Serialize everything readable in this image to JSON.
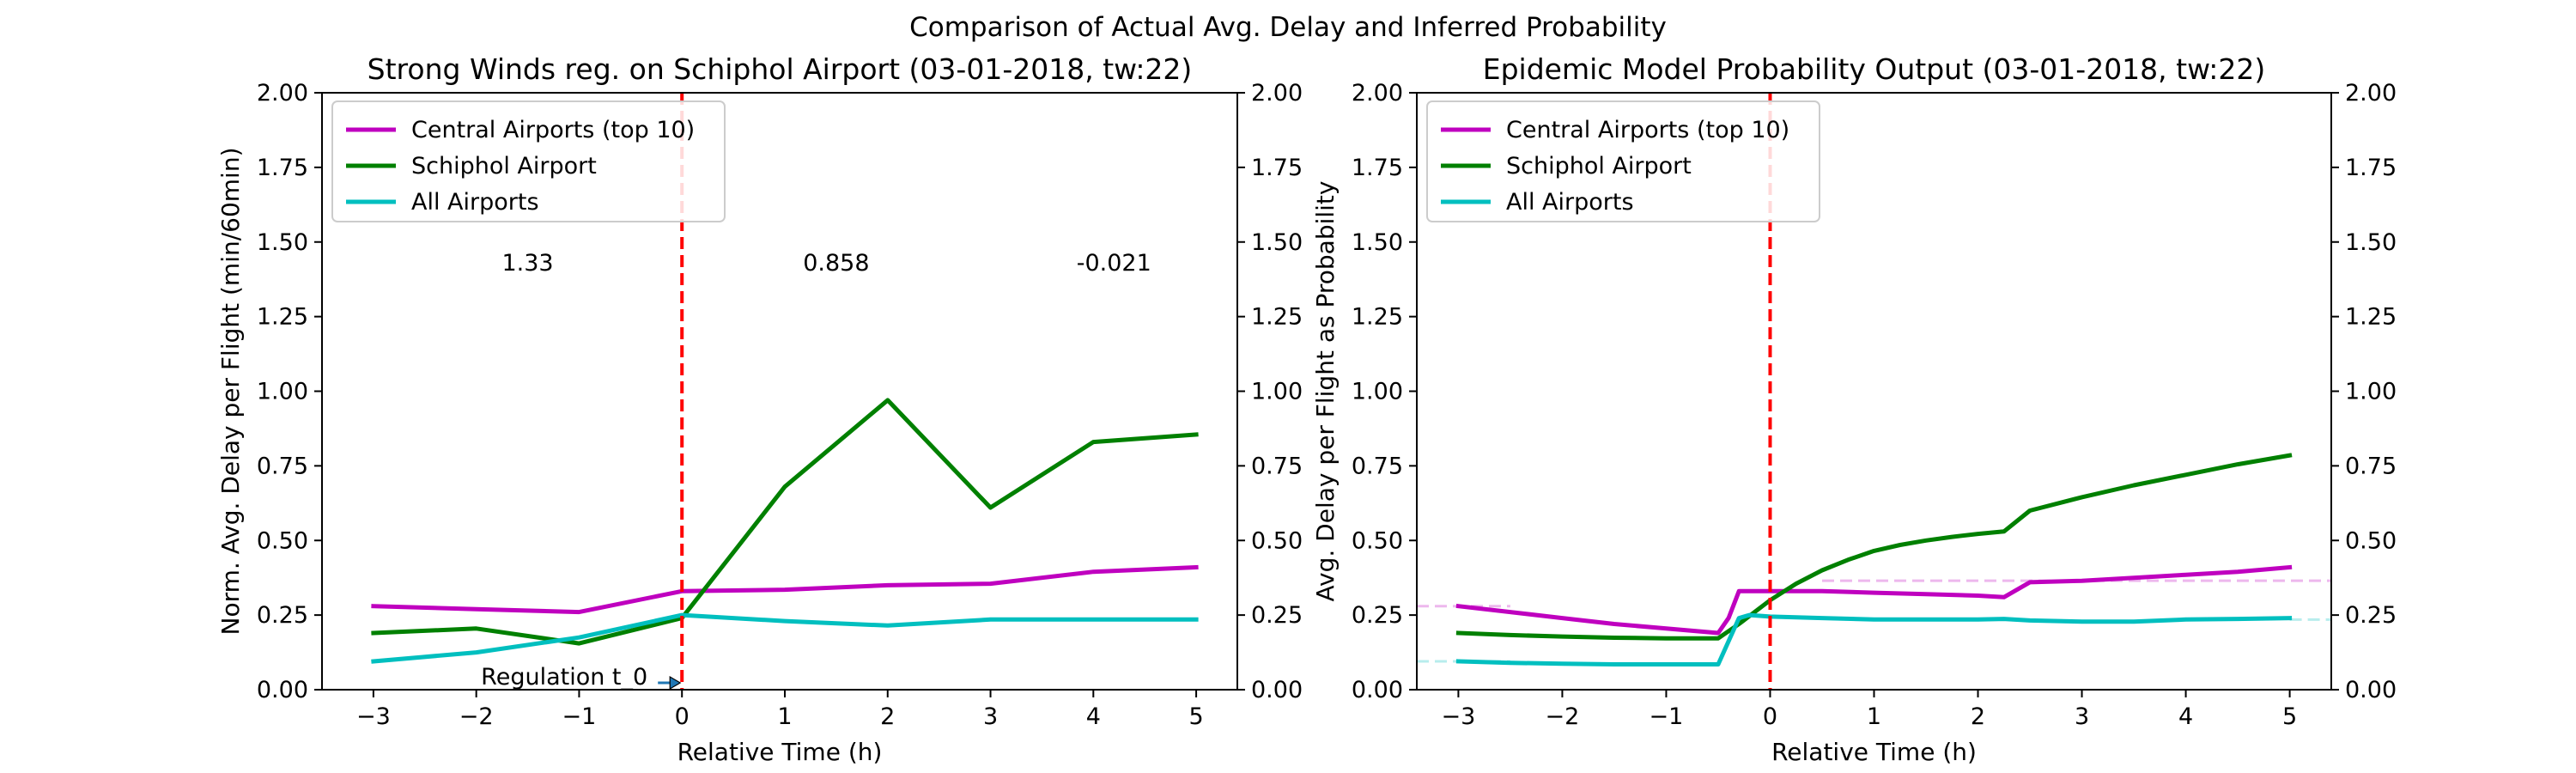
{
  "suptitle": "Comparison of Actual Avg. Delay and Inferred Probability",
  "colors": {
    "central": "#bf00bf",
    "schiphol": "#008000",
    "all": "#00bfbf",
    "regulation": "#ff0000",
    "arrow": "#1f77b4"
  },
  "chart_data": [
    {
      "type": "line",
      "title": "Strong Winds reg. on Schiphol Airport (03-01-2018, tw:22)",
      "xlabel": "Relative Time (h)",
      "ylabel": "Norm. Avg. Delay per Flight (min/60min)",
      "y2label": "",
      "xlim": [
        -3.5,
        5.4
      ],
      "ylim": [
        0,
        2
      ],
      "xticks": [
        -3,
        -2,
        -1,
        0,
        1,
        2,
        3,
        4,
        5
      ],
      "yticks": [
        0,
        0.25,
        0.5,
        0.75,
        1.0,
        1.25,
        1.5,
        1.75,
        2.0
      ],
      "ytick_labels": [
        "0.00",
        "0.25",
        "0.50",
        "0.75",
        "1.00",
        "1.25",
        "1.50",
        "1.75",
        "2.00"
      ],
      "legend_position": "top-left",
      "grid": false,
      "series": [
        {
          "key": "central",
          "name": "Central Airports (top 10)",
          "x": [
            -3,
            -2,
            -1,
            0,
            1,
            2,
            3,
            4,
            5
          ],
          "y": [
            0.28,
            0.27,
            0.26,
            0.33,
            0.335,
            0.35,
            0.355,
            0.395,
            0.41
          ]
        },
        {
          "key": "schiphol",
          "name": "Schiphol Airport",
          "x": [
            -3,
            -2,
            -1,
            0,
            1,
            2,
            3,
            4,
            5
          ],
          "y": [
            0.19,
            0.205,
            0.155,
            0.24,
            0.68,
            0.97,
            0.61,
            0.83,
            0.855
          ]
        },
        {
          "key": "all",
          "name": "All Airports",
          "x": [
            -3,
            -2,
            -1,
            0,
            1,
            2,
            3,
            4,
            5
          ],
          "y": [
            0.095,
            0.125,
            0.175,
            0.25,
            0.23,
            0.215,
            0.235,
            0.235,
            0.235
          ]
        }
      ],
      "vline_x": 0,
      "annotations": [
        {
          "text": "1.33",
          "x": -1.5,
          "y": 1.43
        },
        {
          "text": "0.858",
          "x": 1.5,
          "y": 1.43
        },
        {
          "text": "-0.021",
          "x": 4.2,
          "y": 1.43
        }
      ],
      "regulation_label": "Regulation t_0"
    },
    {
      "type": "line",
      "title": "Epidemic Model Probability Output (03-01-2018, tw:22)",
      "xlabel": "Relative Time (h)",
      "ylabel": "Avg. Delay per Flight as Probability",
      "y2label": "",
      "xlim": [
        -3.4,
        5.4
      ],
      "ylim": [
        0,
        2
      ],
      "xticks": [
        -3,
        -2,
        -1,
        0,
        1,
        2,
        3,
        4,
        5
      ],
      "yticks": [
        0,
        0.25,
        0.5,
        0.75,
        1.0,
        1.25,
        1.5,
        1.75,
        2.0
      ],
      "ytick_labels": [
        "0.00",
        "0.25",
        "0.50",
        "0.75",
        "1.00",
        "1.25",
        "1.50",
        "1.75",
        "2.00"
      ],
      "legend_position": "top-left",
      "grid": false,
      "series": [
        {
          "key": "central",
          "name": "Central Airports (top 10)",
          "x": [
            -3,
            -2.5,
            -2,
            -1.5,
            -1,
            -0.5,
            -0.4,
            -0.3,
            0,
            0.5,
            1,
            1.5,
            2,
            2.25,
            2.5,
            3,
            3.5,
            4,
            4.5,
            5
          ],
          "y": [
            0.28,
            0.26,
            0.24,
            0.22,
            0.205,
            0.19,
            0.24,
            0.33,
            0.33,
            0.33,
            0.325,
            0.32,
            0.315,
            0.31,
            0.36,
            0.365,
            0.375,
            0.385,
            0.395,
            0.41
          ]
        },
        {
          "key": "schiphol",
          "name": "Schiphol Airport",
          "x": [
            -3,
            -2.5,
            -2,
            -1.5,
            -1,
            -0.5,
            -0.3,
            0,
            0.25,
            0.5,
            0.75,
            1,
            1.25,
            1.5,
            1.75,
            2,
            2.25,
            2.5,
            3,
            3.5,
            4,
            4.5,
            5
          ],
          "y": [
            0.19,
            0.183,
            0.178,
            0.174,
            0.172,
            0.172,
            0.22,
            0.3,
            0.355,
            0.4,
            0.435,
            0.465,
            0.485,
            0.5,
            0.512,
            0.522,
            0.53,
            0.6,
            0.645,
            0.685,
            0.72,
            0.755,
            0.785
          ]
        },
        {
          "key": "all",
          "name": "All Airports",
          "x": [
            -3,
            -2.5,
            -2,
            -1.5,
            -1,
            -0.5,
            -0.3,
            -0.2,
            0,
            0.5,
            1,
            1.5,
            2,
            2.25,
            2.5,
            3,
            3.5,
            4,
            4.5,
            5
          ],
          "y": [
            0.095,
            0.09,
            0.087,
            0.085,
            0.085,
            0.085,
            0.24,
            0.25,
            0.245,
            0.24,
            0.235,
            0.235,
            0.235,
            0.237,
            0.232,
            0.228,
            0.228,
            0.235,
            0.237,
            0.24
          ]
        }
      ],
      "reference_lines": [
        {
          "key": "central",
          "x": [
            -3.4,
            -2.5
          ],
          "y": [
            0.28,
            0.28
          ]
        },
        {
          "key": "all",
          "x": [
            -3.4,
            -2.5
          ],
          "y": [
            0.095,
            0.095
          ]
        },
        {
          "key": "central",
          "x": [
            0.5,
            5.4
          ],
          "y": [
            0.365,
            0.365
          ]
        },
        {
          "key": "all",
          "x": [
            5,
            5.4
          ],
          "y": [
            0.235,
            0.235
          ]
        }
      ],
      "vline_x": 0
    }
  ]
}
